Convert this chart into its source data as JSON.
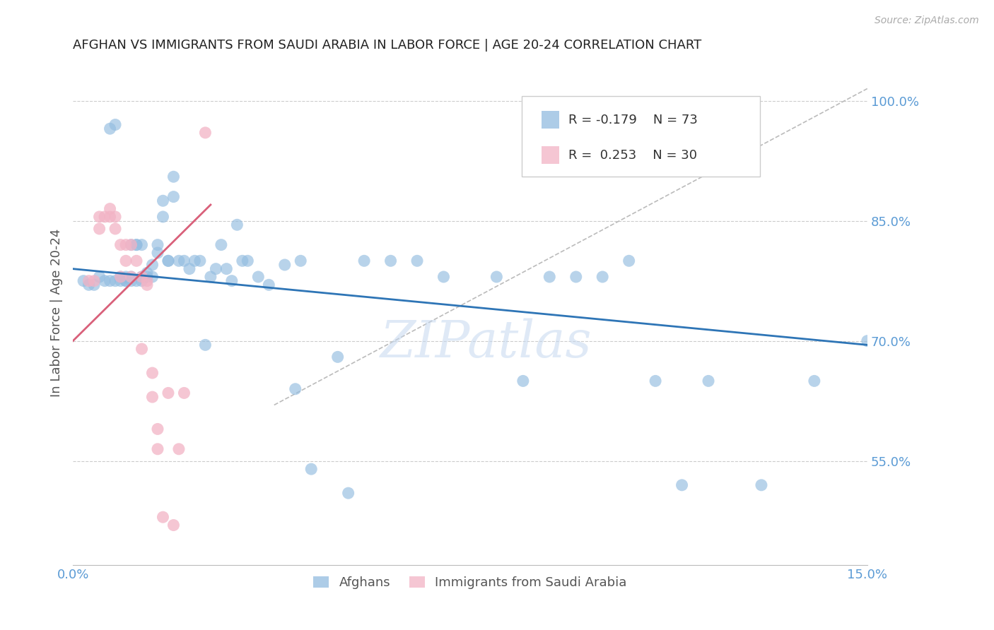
{
  "title": "AFGHAN VS IMMIGRANTS FROM SAUDI ARABIA IN LABOR FORCE | AGE 20-24 CORRELATION CHART",
  "source": "Source: ZipAtlas.com",
  "ylabel_label": "In Labor Force | Age 20-24",
  "ylabel_ticks": [
    100.0,
    85.0,
    70.0,
    55.0
  ],
  "xlim": [
    0.0,
    0.15
  ],
  "ylim": [
    0.42,
    1.05
  ],
  "background_color": "#ffffff",
  "grid_color": "#cccccc",
  "title_color": "#222222",
  "axis_color": "#5b9bd5",
  "legend": {
    "blue_R": "R = -0.179",
    "blue_N": "N = 73",
    "pink_R": "R =  0.253",
    "pink_N": "N = 30"
  },
  "blue_scatter_x": [
    0.002,
    0.003,
    0.004,
    0.005,
    0.006,
    0.007,
    0.007,
    0.008,
    0.008,
    0.009,
    0.009,
    0.01,
    0.01,
    0.01,
    0.011,
    0.011,
    0.011,
    0.012,
    0.012,
    0.012,
    0.013,
    0.013,
    0.013,
    0.014,
    0.014,
    0.015,
    0.015,
    0.016,
    0.016,
    0.017,
    0.017,
    0.018,
    0.018,
    0.019,
    0.019,
    0.02,
    0.021,
    0.022,
    0.023,
    0.024,
    0.025,
    0.026,
    0.027,
    0.028,
    0.029,
    0.03,
    0.031,
    0.032,
    0.033,
    0.035,
    0.037,
    0.04,
    0.042,
    0.043,
    0.045,
    0.05,
    0.052,
    0.055,
    0.06,
    0.065,
    0.07,
    0.08,
    0.085,
    0.09,
    0.095,
    0.1,
    0.105,
    0.11,
    0.115,
    0.12,
    0.13,
    0.14,
    0.15
  ],
  "blue_scatter_y": [
    0.775,
    0.77,
    0.77,
    0.78,
    0.775,
    0.775,
    0.965,
    0.775,
    0.97,
    0.78,
    0.775,
    0.775,
    0.78,
    0.775,
    0.78,
    0.775,
    0.82,
    0.775,
    0.82,
    0.82,
    0.82,
    0.78,
    0.775,
    0.785,
    0.78,
    0.795,
    0.78,
    0.82,
    0.81,
    0.875,
    0.855,
    0.8,
    0.8,
    0.88,
    0.905,
    0.8,
    0.8,
    0.79,
    0.8,
    0.8,
    0.695,
    0.78,
    0.79,
    0.82,
    0.79,
    0.775,
    0.845,
    0.8,
    0.8,
    0.78,
    0.77,
    0.795,
    0.64,
    0.8,
    0.54,
    0.68,
    0.51,
    0.8,
    0.8,
    0.8,
    0.78,
    0.78,
    0.65,
    0.78,
    0.78,
    0.78,
    0.8,
    0.65,
    0.52,
    0.65,
    0.52,
    0.65,
    0.7
  ],
  "pink_scatter_x": [
    0.003,
    0.004,
    0.005,
    0.005,
    0.006,
    0.007,
    0.007,
    0.008,
    0.008,
    0.009,
    0.009,
    0.01,
    0.01,
    0.011,
    0.011,
    0.012,
    0.013,
    0.013,
    0.014,
    0.014,
    0.015,
    0.015,
    0.016,
    0.016,
    0.017,
    0.018,
    0.019,
    0.02,
    0.021,
    0.025
  ],
  "pink_scatter_y": [
    0.775,
    0.775,
    0.84,
    0.855,
    0.855,
    0.855,
    0.865,
    0.84,
    0.855,
    0.78,
    0.82,
    0.8,
    0.82,
    0.78,
    0.82,
    0.8,
    0.69,
    0.78,
    0.77,
    0.775,
    0.63,
    0.66,
    0.59,
    0.565,
    0.48,
    0.635,
    0.47,
    0.565,
    0.635,
    0.96
  ],
  "blue_line_x": [
    0.0,
    0.15
  ],
  "blue_line_y": [
    0.79,
    0.695
  ],
  "pink_line_x": [
    0.0,
    0.026
  ],
  "pink_line_y": [
    0.7,
    0.87
  ],
  "dashed_line_x": [
    0.038,
    0.15
  ],
  "dashed_line_y": [
    0.62,
    1.015
  ],
  "blue_color": "#92bce0",
  "pink_color": "#f2b3c5",
  "blue_line_color": "#2e75b6",
  "pink_line_color": "#d9607a",
  "dashed_line_color": "#bbbbbb",
  "watermark": "ZIPatlas",
  "watermark_color": "#c5d8ef"
}
